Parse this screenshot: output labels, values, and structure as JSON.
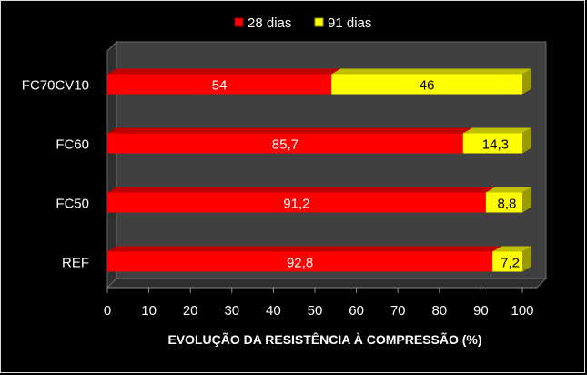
{
  "chart_data": {
    "type": "bar",
    "orientation": "horizontal",
    "stacked": true,
    "three_d": true,
    "categories": [
      "FC70CV10",
      "FC60",
      "FC50",
      "REF"
    ],
    "series": [
      {
        "name": "28 dias",
        "values": [
          54,
          85.7,
          91.2,
          92.8
        ],
        "labels": [
          "54",
          "85,7",
          "91,2",
          "92,8"
        ],
        "color": "#ff0000"
      },
      {
        "name": "91 dias",
        "values": [
          46,
          14.3,
          8.8,
          7.2
        ],
        "labels": [
          "46",
          "14,3",
          "8,8",
          "7,2"
        ],
        "color": "#ffff00"
      }
    ],
    "xlabel": "EVOLUÇÃO DA RESISTÊNCIA À COMPRESSÃO (%)",
    "xlim": [
      0,
      100
    ],
    "xticks": [
      "0",
      "10",
      "20",
      "30",
      "40",
      "50",
      "60",
      "70",
      "80",
      "90",
      "100"
    ],
    "legend_position": "top",
    "background": "#000000",
    "wall_color": "#404040",
    "text_color": "#ffffff",
    "grid": false
  }
}
